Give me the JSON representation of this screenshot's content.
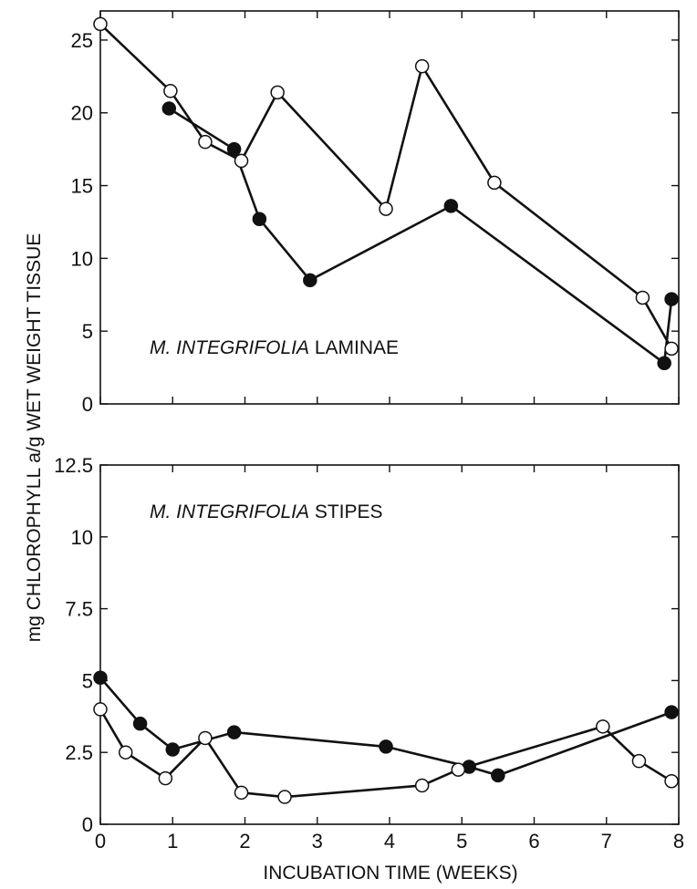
{
  "chart_data": [
    {
      "type": "line",
      "panel_label_italic": "M. INTEGRIFOLIA",
      "panel_label_rest": " LAMINAE",
      "ylim": [
        0,
        27
      ],
      "xlim": [
        0,
        8
      ],
      "yticks": [
        0,
        5,
        10,
        15,
        20,
        25
      ],
      "ytick_labels": [
        "0",
        "5",
        "10",
        "15",
        "20",
        "25"
      ],
      "grid": false,
      "series": [
        {
          "marker": "filled-circle",
          "color": "#111111",
          "x": [
            0.95,
            1.85,
            2.2,
            2.9,
            4.85,
            7.8,
            7.9
          ],
          "y": [
            20.3,
            17.5,
            12.7,
            8.5,
            13.6,
            2.8,
            7.2
          ]
        },
        {
          "marker": "open-circle",
          "color": "#111111",
          "x": [
            0,
            0.97,
            1.45,
            1.95,
            2.45,
            3.95,
            4.45,
            5.45,
            7.5,
            7.9
          ],
          "y": [
            26.1,
            21.5,
            18.0,
            16.7,
            21.4,
            13.4,
            23.2,
            15.2,
            7.3,
            3.8
          ]
        }
      ]
    },
    {
      "type": "line",
      "panel_label_italic": "M. INTEGRIFOLIA",
      "panel_label_rest": " STIPES",
      "ylim": [
        0,
        12.5
      ],
      "xlim": [
        0,
        8
      ],
      "yticks": [
        0,
        2.5,
        5,
        7.5,
        10,
        12.5
      ],
      "ytick_labels": [
        "0",
        "2.5",
        "5",
        "7.5",
        "10",
        "12.5"
      ],
      "xticks": [
        0,
        1,
        2,
        3,
        4,
        5,
        6,
        7,
        8
      ],
      "xtick_labels": [
        "0",
        "1",
        "2",
        "3",
        "4",
        "5",
        "6",
        "7",
        "8"
      ],
      "grid": false,
      "series": [
        {
          "marker": "filled-circle",
          "color": "#111111",
          "x": [
            0,
            0.55,
            1.0,
            1.85,
            3.95,
            5.1,
            5.5,
            7.9
          ],
          "y": [
            5.1,
            3.5,
            2.6,
            3.2,
            2.7,
            2.0,
            1.7,
            3.9
          ]
        },
        {
          "marker": "open-circle",
          "color": "#111111",
          "x": [
            0,
            0.35,
            0.9,
            1.45,
            1.95,
            2.55,
            4.45,
            4.95,
            6.95,
            7.45,
            7.9
          ],
          "y": [
            4.0,
            2.5,
            1.6,
            3.0,
            1.1,
            0.95,
            1.35,
            1.9,
            3.4,
            2.2,
            1.5
          ]
        }
      ]
    }
  ],
  "ylabel": "mg CHLOROPHYLL a/g WET WEIGHT TISSUE",
  "xlabel": "INCUBATION TIME (WEEKS)"
}
